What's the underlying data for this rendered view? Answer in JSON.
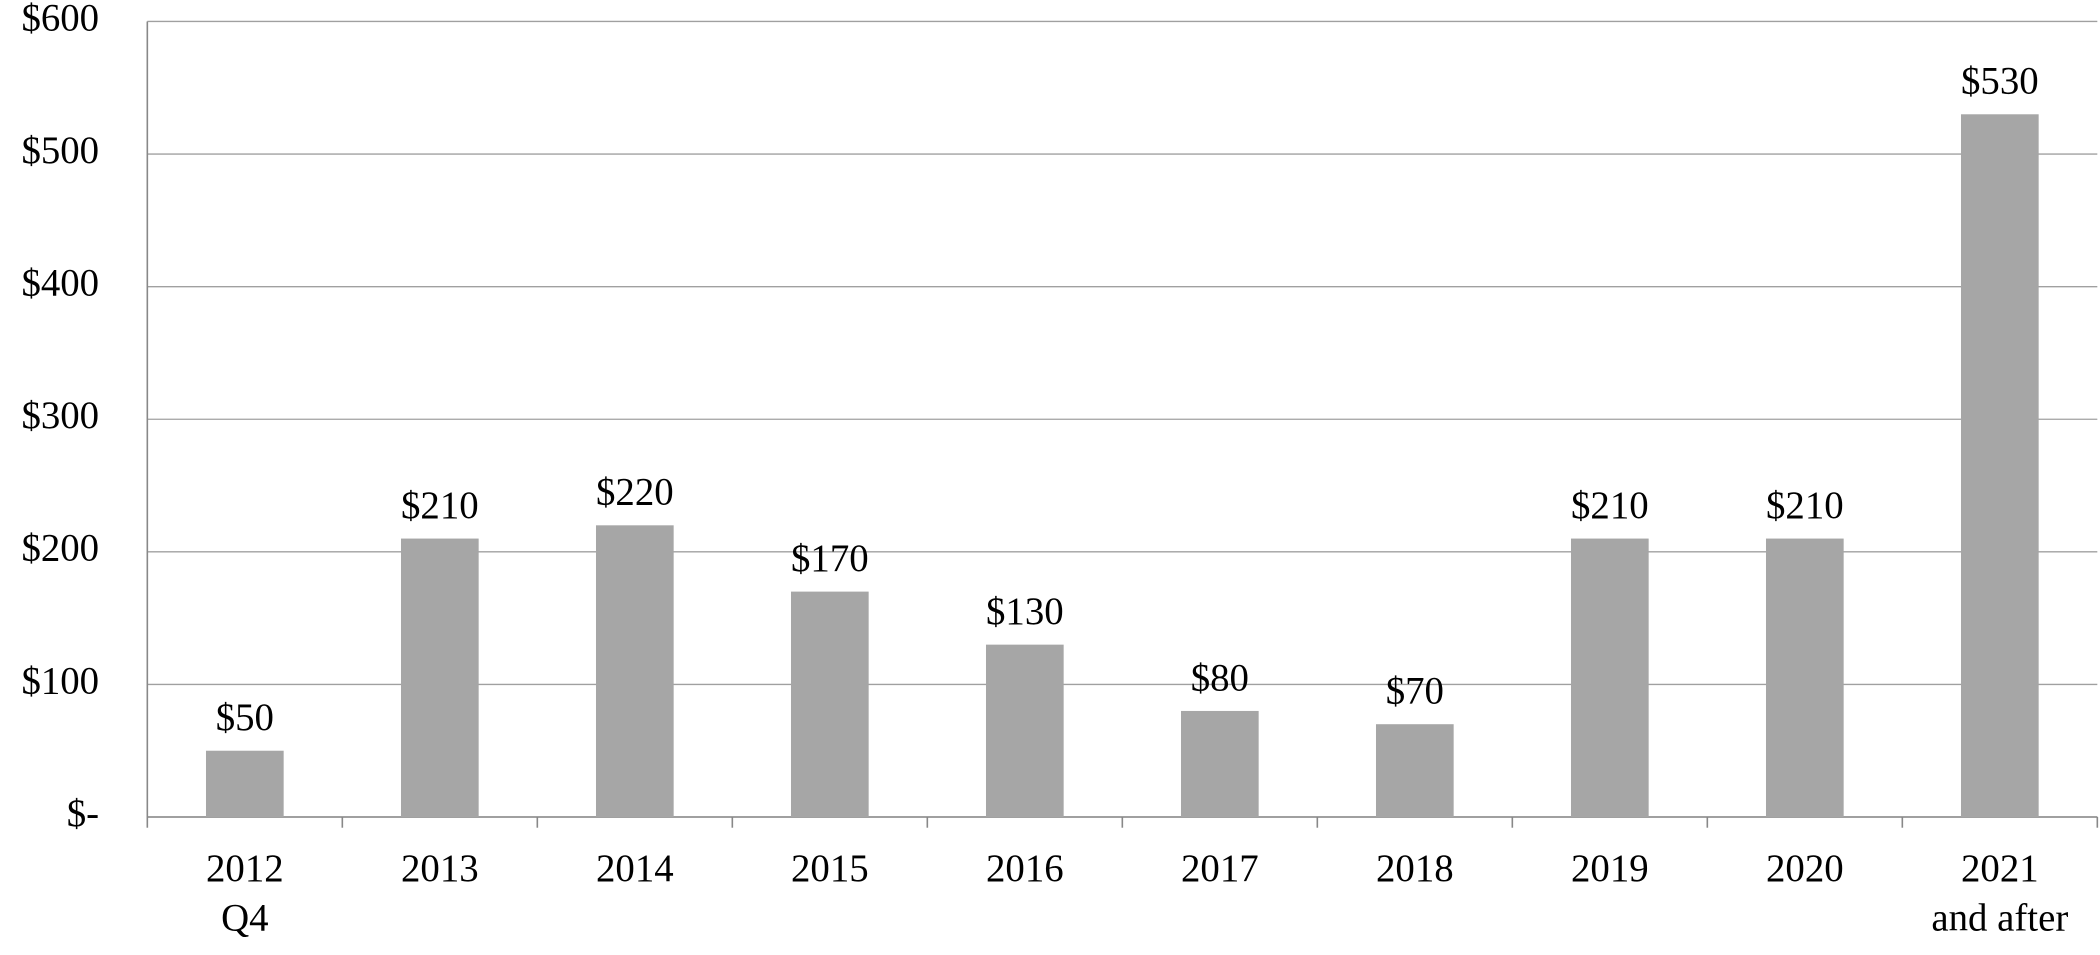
{
  "chart_data": {
    "type": "bar",
    "categories": [
      "2012\nQ4",
      "2013",
      "2014",
      "2015",
      "2016",
      "2017",
      "2018",
      "2019",
      "2020",
      "2021\nand after"
    ],
    "values": [
      50,
      210,
      220,
      170,
      130,
      80,
      70,
      210,
      210,
      530
    ],
    "value_labels": [
      "$50",
      "$210",
      "$220",
      "$170",
      "$130",
      "$80",
      "$70",
      "$210",
      "$210",
      "$530"
    ],
    "color": "#a6a6a6",
    "ylim": [
      0,
      600
    ],
    "yticks": [
      {
        "value": 0,
        "label": "$-"
      },
      {
        "value": 100,
        "label": "$100"
      },
      {
        "value": 200,
        "label": "$200"
      },
      {
        "value": 300,
        "label": "$300"
      },
      {
        "value": 400,
        "label": "$400"
      },
      {
        "value": 500,
        "label": "$500"
      },
      {
        "value": 600,
        "label": "$600"
      }
    ],
    "grid": true
  }
}
